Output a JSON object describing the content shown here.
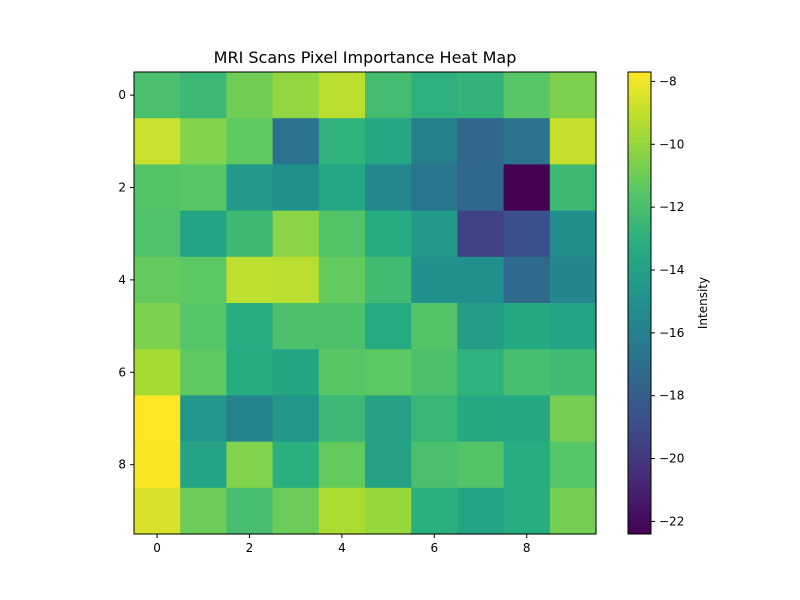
{
  "chart_data": {
    "type": "heatmap",
    "title": "MRI Scans Pixel Importance Heat Map",
    "xlabel": "",
    "ylabel": "",
    "x_ticks": [
      0,
      2,
      4,
      6,
      8
    ],
    "y_ticks": [
      0,
      2,
      4,
      6,
      8
    ],
    "colorbar": {
      "label": "Intensity",
      "range": [
        -22.4,
        -7.7
      ],
      "ticks": [
        -8,
        -10,
        -12,
        -14,
        -16,
        -18,
        -20,
        -22
      ],
      "colormap": "viridis"
    },
    "values": [
      [
        -12.0,
        -12.5,
        -10.9,
        -10.1,
        -9.2,
        -12.2,
        -13.0,
        -12.8,
        -11.5,
        -10.6
      ],
      [
        -8.8,
        -10.5,
        -11.3,
        -16.8,
        -12.9,
        -13.6,
        -16.0,
        -17.5,
        -16.7,
        -8.9
      ],
      [
        -11.7,
        -11.5,
        -14.4,
        -15.0,
        -13.6,
        -15.6,
        -16.6,
        -17.4,
        -22.4,
        -12.4
      ],
      [
        -11.8,
        -13.8,
        -12.4,
        -10.3,
        -11.7,
        -13.3,
        -14.4,
        -19.4,
        -18.7,
        -15.2
      ],
      [
        -11.2,
        -11.4,
        -9.1,
        -9.2,
        -11.2,
        -12.3,
        -15.0,
        -15.1,
        -17.3,
        -15.7
      ],
      [
        -10.6,
        -11.6,
        -13.2,
        -11.9,
        -11.9,
        -13.4,
        -11.7,
        -14.2,
        -13.5,
        -13.8
      ],
      [
        -9.6,
        -11.3,
        -13.3,
        -13.7,
        -11.5,
        -11.4,
        -11.9,
        -12.9,
        -12.1,
        -12.3
      ],
      [
        -7.7,
        -14.7,
        -15.8,
        -14.6,
        -12.5,
        -13.9,
        -12.6,
        -13.5,
        -13.6,
        -10.8
      ],
      [
        -7.8,
        -13.8,
        -10.5,
        -13.1,
        -11.2,
        -13.9,
        -12.0,
        -11.7,
        -13.2,
        -11.6
      ],
      [
        -8.5,
        -11.0,
        -12.1,
        -11.0,
        -9.5,
        -10.0,
        -13.1,
        -13.8,
        -13.2,
        -10.8
      ]
    ]
  }
}
